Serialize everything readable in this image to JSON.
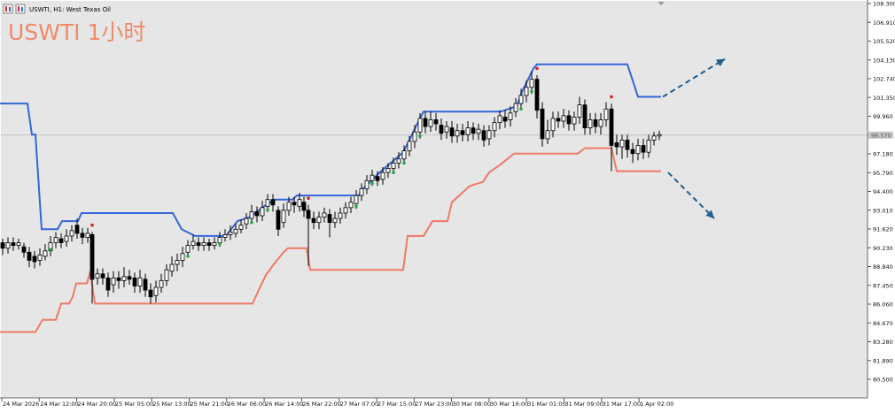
{
  "window": {
    "title": "USWTI, H1: West Texas Oil",
    "overlay_title": "USWTI 1小时"
  },
  "colors": {
    "background": "#e6e6e6",
    "upper_band": "#3366d9",
    "lower_band": "#ee7a66",
    "candle_up": "#ffffff",
    "candle_down": "#000000",
    "dot_up": "#22aa44",
    "dot_down": "#dd2222",
    "arrows": "#1f5f8b",
    "overlay_text": "#f08a6a"
  },
  "icons": [
    "chart-window-icon-1",
    "chart-window-icon-2"
  ],
  "chart_data": {
    "type": "candlestick",
    "title": "USWTI, H1: West Texas Oil",
    "price_axis_labels": [
      "108.300",
      "106.910",
      "105.520",
      "104.130",
      "102.740",
      "101.350",
      "99.960",
      "98.570",
      "97.180",
      "95.790",
      "94.400",
      "93.010",
      "91.620",
      "90.230",
      "88.840",
      "87.450",
      "86.060",
      "84.670",
      "83.280",
      "81.890",
      "80.500"
    ],
    "time_axis_labels": [
      "24 Mar 2026",
      "24 Mar 12:00",
      "24 Mar 20:00",
      "25 Mar 05:00",
      "25 Mar 13:00",
      "25 Mar 21:00",
      "26 Mar 06:00",
      "26 Mar 14:00",
      "26 Mar 22:00",
      "27 Mar 07:00",
      "27 Mar 15:00",
      "27 Mar 23:00",
      "30 Mar 08:00",
      "30 Mar 16:00",
      "31 Mar 01:00",
      "31 Mar 09:00",
      "31 Mar 17:00",
      "1 Apr 02:00"
    ],
    "ylim": [
      79.8,
      108.6
    ],
    "current_price": 98.57,
    "upper_band_steps": [
      [
        0,
        100.9
      ],
      [
        31,
        100.9
      ],
      [
        36,
        98.6
      ],
      [
        40,
        98.6
      ],
      [
        47,
        91.6
      ],
      [
        65,
        91.6
      ],
      [
        70,
        92.2
      ],
      [
        88,
        92.2
      ],
      [
        92,
        92.8
      ],
      [
        195,
        92.8
      ],
      [
        205,
        91.6
      ],
      [
        220,
        91.1
      ],
      [
        255,
        91.1
      ],
      [
        268,
        92.2
      ],
      [
        282,
        92.5
      ],
      [
        298,
        93.3
      ],
      [
        310,
        93.8
      ],
      [
        330,
        93.8
      ],
      [
        335,
        94.1
      ],
      [
        405,
        94.1
      ],
      [
        408,
        94.5
      ],
      [
        430,
        95.9
      ],
      [
        455,
        97.3
      ],
      [
        462,
        98.2
      ],
      [
        470,
        99.3
      ],
      [
        478,
        100.3
      ],
      [
        565,
        100.3
      ],
      [
        583,
        100.7
      ],
      [
        590,
        101.9
      ],
      [
        602,
        103.5
      ],
      [
        606,
        103.8
      ],
      [
        708,
        103.8
      ],
      [
        720,
        101.4
      ],
      [
        746,
        101.4
      ]
    ],
    "lower_band_steps": [
      [
        0,
        84.0
      ],
      [
        40,
        84.0
      ],
      [
        48,
        84.9
      ],
      [
        63,
        84.9
      ],
      [
        69,
        86.1
      ],
      [
        78,
        86.1
      ],
      [
        82,
        86.6
      ],
      [
        86,
        87.6
      ],
      [
        98,
        87.6
      ],
      [
        102,
        88.5
      ],
      [
        107,
        86.1
      ],
      [
        285,
        86.1
      ],
      [
        292,
        87.1
      ],
      [
        300,
        88.2
      ],
      [
        310,
        89.1
      ],
      [
        320,
        89.9
      ],
      [
        325,
        90.2
      ],
      [
        346,
        90.2
      ],
      [
        350,
        88.6
      ],
      [
        455,
        88.6
      ],
      [
        460,
        91.1
      ],
      [
        478,
        91.1
      ],
      [
        488,
        92.2
      ],
      [
        505,
        92.2
      ],
      [
        510,
        93.6
      ],
      [
        520,
        94.2
      ],
      [
        530,
        94.8
      ],
      [
        545,
        95.1
      ],
      [
        552,
        95.8
      ],
      [
        565,
        96.4
      ],
      [
        580,
        97.2
      ],
      [
        652,
        97.2
      ],
      [
        660,
        97.6
      ],
      [
        690,
        97.6
      ],
      [
        696,
        95.9
      ],
      [
        746,
        95.9
      ]
    ],
    "candles": [
      [
        3,
        90.6,
        90.2,
        90.9,
        89.7
      ],
      [
        9,
        90.2,
        90.6,
        91.0,
        89.8
      ],
      [
        15,
        90.6,
        90.4,
        91.0,
        90.0
      ],
      [
        21,
        90.4,
        90.6,
        90.9,
        90.1
      ],
      [
        27,
        90.3,
        89.9,
        90.6,
        89.5
      ],
      [
        33,
        89.9,
        89.3,
        90.3,
        88.8
      ],
      [
        39,
        89.6,
        89.2,
        90.0,
        88.7
      ],
      [
        45,
        89.3,
        89.7,
        90.2,
        88.9
      ],
      [
        51,
        89.6,
        90.0,
        90.5,
        89.3
      ],
      [
        57,
        90.0,
        90.6,
        91.1,
        89.6
      ],
      [
        63,
        90.6,
        91.0,
        91.4,
        90.2
      ],
      [
        69,
        90.9,
        90.6,
        91.3,
        90.2
      ],
      [
        75,
        90.7,
        91.1,
        91.6,
        90.3
      ],
      [
        81,
        91.1,
        91.5,
        91.9,
        90.7
      ],
      [
        87,
        91.9,
        91.3,
        92.4,
        90.9
      ],
      [
        93,
        91.3,
        91.0,
        91.7,
        90.5
      ],
      [
        99,
        91.0,
        91.3,
        91.7,
        90.6
      ],
      [
        104,
        91.2,
        87.9,
        91.4,
        86.1
      ],
      [
        110,
        88.0,
        88.3,
        88.7,
        87.5
      ],
      [
        116,
        88.3,
        88.0,
        88.7,
        87.5
      ],
      [
        122,
        88.0,
        87.1,
        88.4,
        86.6
      ],
      [
        128,
        87.5,
        88.0,
        88.5,
        86.9
      ],
      [
        134,
        88.0,
        87.8,
        88.5,
        87.2
      ],
      [
        140,
        87.8,
        88.1,
        88.8,
        87.3
      ],
      [
        146,
        88.1,
        87.9,
        88.6,
        87.5
      ],
      [
        152,
        88.0,
        87.4,
        88.4,
        86.9
      ],
      [
        158,
        87.4,
        88.0,
        88.6,
        86.9
      ],
      [
        164,
        87.9,
        87.1,
        88.3,
        86.6
      ],
      [
        170,
        87.1,
        86.6,
        87.6,
        86.1
      ],
      [
        176,
        86.7,
        87.3,
        87.8,
        86.2
      ],
      [
        182,
        87.3,
        87.8,
        88.3,
        86.9
      ],
      [
        188,
        87.8,
        88.6,
        89.0,
        87.4
      ],
      [
        194,
        88.5,
        89.0,
        89.6,
        88.1
      ],
      [
        200,
        89.0,
        89.3,
        89.8,
        88.5
      ],
      [
        206,
        89.3,
        89.8,
        90.3,
        88.8
      ],
      [
        212,
        89.9,
        90.4,
        90.8,
        89.5
      ],
      [
        218,
        90.4,
        90.7,
        91.2,
        90.1
      ],
      [
        224,
        90.6,
        90.4,
        91.0,
        90.0
      ],
      [
        230,
        90.4,
        90.6,
        91.0,
        90.0
      ],
      [
        236,
        90.6,
        90.4,
        90.9,
        90.0
      ],
      [
        242,
        90.4,
        90.6,
        91.0,
        90.1
      ],
      [
        248,
        90.6,
        91.0,
        91.4,
        90.3
      ],
      [
        254,
        91.0,
        91.2,
        91.6,
        90.7
      ],
      [
        260,
        91.2,
        91.4,
        91.9,
        90.8
      ],
      [
        266,
        91.3,
        91.6,
        92.0,
        91.0
      ],
      [
        272,
        91.6,
        91.9,
        92.3,
        91.3
      ],
      [
        278,
        92.0,
        92.4,
        92.8,
        91.6
      ],
      [
        284,
        92.4,
        92.9,
        93.4,
        92.0
      ],
      [
        290,
        92.9,
        92.6,
        93.3,
        92.1
      ],
      [
        296,
        92.6,
        93.2,
        93.7,
        92.2
      ],
      [
        302,
        93.3,
        93.8,
        94.2,
        92.9
      ],
      [
        308,
        93.8,
        93.4,
        94.2,
        92.9
      ],
      [
        314,
        93.0,
        91.6,
        93.3,
        91.1
      ],
      [
        320,
        92.1,
        93.0,
        93.5,
        91.7
      ],
      [
        326,
        93.0,
        93.6,
        94.0,
        92.6
      ],
      [
        332,
        93.6,
        93.4,
        94.0,
        92.8
      ],
      [
        338,
        93.3,
        93.8,
        94.3,
        92.9
      ],
      [
        343,
        93.6,
        93.0,
        94.0,
        92.5
      ],
      [
        348,
        93.0,
        92.4,
        93.4,
        88.9
      ],
      [
        354,
        92.4,
        92.1,
        92.9,
        91.6
      ],
      [
        360,
        92.1,
        92.5,
        92.9,
        91.6
      ],
      [
        366,
        92.5,
        92.8,
        93.2,
        92.1
      ],
      [
        372,
        92.7,
        92.1,
        93.1,
        91.0
      ],
      [
        378,
        92.1,
        92.4,
        92.9,
        91.7
      ],
      [
        384,
        92.4,
        92.8,
        93.2,
        92.0
      ],
      [
        390,
        92.8,
        93.2,
        93.6,
        92.4
      ],
      [
        396,
        93.2,
        93.6,
        94.0,
        92.8
      ],
      [
        402,
        93.5,
        94.1,
        94.5,
        93.1
      ],
      [
        408,
        94.1,
        94.6,
        95.0,
        93.7
      ],
      [
        414,
        94.6,
        95.2,
        95.6,
        94.2
      ],
      [
        420,
        95.2,
        95.6,
        96.0,
        94.8
      ],
      [
        426,
        95.5,
        95.2,
        95.9,
        94.8
      ],
      [
        432,
        95.3,
        95.8,
        96.2,
        94.9
      ],
      [
        438,
        95.8,
        96.1,
        96.5,
        95.4
      ],
      [
        444,
        96.1,
        96.5,
        96.9,
        95.7
      ],
      [
        450,
        96.5,
        96.8,
        97.3,
        96.1
      ],
      [
        456,
        96.8,
        97.4,
        97.8,
        96.4
      ],
      [
        462,
        97.4,
        98.1,
        98.5,
        97.0
      ],
      [
        468,
        98.1,
        98.8,
        99.3,
        97.6
      ],
      [
        474,
        98.8,
        99.8,
        100.2,
        98.3
      ],
      [
        480,
        99.8,
        99.2,
        100.3,
        98.7
      ],
      [
        486,
        99.2,
        99.7,
        100.3,
        98.8
      ],
      [
        492,
        99.7,
        99.4,
        100.2,
        98.9
      ],
      [
        498,
        99.3,
        98.7,
        99.8,
        98.2
      ],
      [
        504,
        98.8,
        99.2,
        99.6,
        98.3
      ],
      [
        510,
        99.1,
        98.5,
        99.6,
        98.0
      ],
      [
        516,
        98.5,
        98.9,
        99.4,
        98.0
      ],
      [
        522,
        98.9,
        98.6,
        99.4,
        98.1
      ],
      [
        528,
        98.6,
        99.1,
        99.6,
        98.1
      ],
      [
        534,
        99.1,
        98.7,
        99.5,
        98.2
      ],
      [
        540,
        98.7,
        99.0,
        99.4,
        98.2
      ],
      [
        546,
        98.9,
        98.2,
        99.3,
        97.7
      ],
      [
        552,
        98.3,
        98.9,
        99.3,
        97.8
      ],
      [
        558,
        98.9,
        99.5,
        99.9,
        98.4
      ],
      [
        564,
        99.5,
        100.0,
        100.4,
        99.0
      ],
      [
        570,
        99.9,
        99.6,
        100.4,
        99.1
      ],
      [
        576,
        99.7,
        100.2,
        100.7,
        99.2
      ],
      [
        582,
        100.3,
        100.9,
        101.3,
        99.9
      ],
      [
        588,
        100.9,
        101.5,
        102.0,
        100.4
      ],
      [
        594,
        101.5,
        102.1,
        102.6,
        101.0
      ],
      [
        600,
        102.1,
        102.7,
        103.3,
        101.6
      ],
      [
        606,
        102.7,
        100.4,
        103.0,
        99.8
      ],
      [
        612,
        100.5,
        98.3,
        101.0,
        97.7
      ],
      [
        618,
        98.3,
        98.9,
        99.7,
        97.9
      ],
      [
        624,
        98.9,
        99.8,
        100.3,
        98.4
      ],
      [
        630,
        99.8,
        99.6,
        100.3,
        99.1
      ],
      [
        636,
        99.6,
        100.0,
        100.5,
        99.1
      ],
      [
        642,
        100.0,
        99.4,
        100.4,
        98.9
      ],
      [
        648,
        99.4,
        99.9,
        100.3,
        98.9
      ],
      [
        654,
        99.9,
        100.8,
        101.4,
        99.4
      ],
      [
        660,
        100.8,
        99.1,
        101.2,
        98.6
      ],
      [
        666,
        99.1,
        99.7,
        100.2,
        98.6
      ],
      [
        672,
        99.7,
        99.2,
        100.2,
        98.7
      ],
      [
        678,
        99.2,
        99.7,
        100.2,
        98.6
      ],
      [
        684,
        99.7,
        100.5,
        101.0,
        99.2
      ],
      [
        690,
        100.5,
        97.8,
        100.9,
        95.9
      ],
      [
        696,
        98.0,
        97.7,
        98.6,
        97.1
      ],
      [
        702,
        97.7,
        98.2,
        98.6,
        96.8
      ],
      [
        708,
        98.2,
        97.5,
        98.6,
        96.9
      ],
      [
        714,
        97.5,
        97.2,
        98.0,
        96.5
      ],
      [
        720,
        97.2,
        97.8,
        98.3,
        96.7
      ],
      [
        726,
        97.8,
        97.3,
        98.3,
        96.8
      ],
      [
        732,
        97.3,
        98.2,
        98.6,
        96.9
      ],
      [
        738,
        98.2,
        98.5,
        98.8,
        97.8
      ],
      [
        744,
        98.5,
        98.6,
        98.9,
        98.2
      ]
    ],
    "buy_signals": [
      [
        57,
        90.1
      ],
      [
        212,
        89.6
      ],
      [
        248,
        90.5
      ],
      [
        284,
        92.1
      ],
      [
        302,
        93.0
      ],
      [
        402,
        93.3
      ],
      [
        420,
        95.0
      ],
      [
        444,
        95.8
      ],
      [
        456,
        96.5
      ],
      [
        474,
        98.5
      ],
      [
        588,
        100.5
      ],
      [
        600,
        101.8
      ]
    ],
    "sell_signals": [
      [
        104,
        91.9
      ],
      [
        348,
        93.9
      ],
      [
        606,
        103.5
      ],
      [
        690,
        101.4
      ]
    ],
    "annotations": [
      {
        "type": "arrow",
        "direction": "up",
        "from": [
          748,
          101.4
        ],
        "to": [
          818,
          104.2
        ]
      },
      {
        "type": "arrow",
        "direction": "down",
        "from": [
          754,
          95.8
        ],
        "to": [
          806,
          92.4
        ]
      }
    ]
  }
}
